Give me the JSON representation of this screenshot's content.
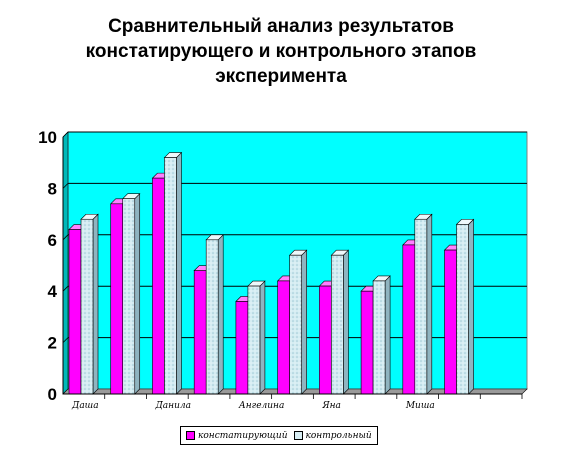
{
  "chart_data": {
    "type": "bar",
    "title_lines": [
      "Сравнительный анализ результатов",
      "констатирующего и контрольного этапов",
      "эксперимента"
    ],
    "categories": [
      "Даша",
      "",
      "Данила",
      "",
      "Ангелина",
      "",
      "Яна",
      "",
      "Миша",
      "",
      ""
    ],
    "series": [
      {
        "name": "констатирующий",
        "color": "#ff00ff",
        "values": [
          6.4,
          7.4,
          8.4,
          4.8,
          3.6,
          4.4,
          4.2,
          4.0,
          5.8,
          5.6,
          null
        ]
      },
      {
        "name": "контрольный",
        "color": "#d8eef4",
        "values": [
          6.8,
          7.6,
          9.2,
          6.0,
          4.2,
          5.4,
          5.4,
          4.4,
          6.8,
          6.6,
          null
        ]
      }
    ],
    "ylim": [
      0,
      10
    ],
    "yticks": [
      0,
      2,
      4,
      6,
      8,
      10
    ],
    "grid": true,
    "plot_background": "#00ffff",
    "legend_position": "bottom"
  }
}
